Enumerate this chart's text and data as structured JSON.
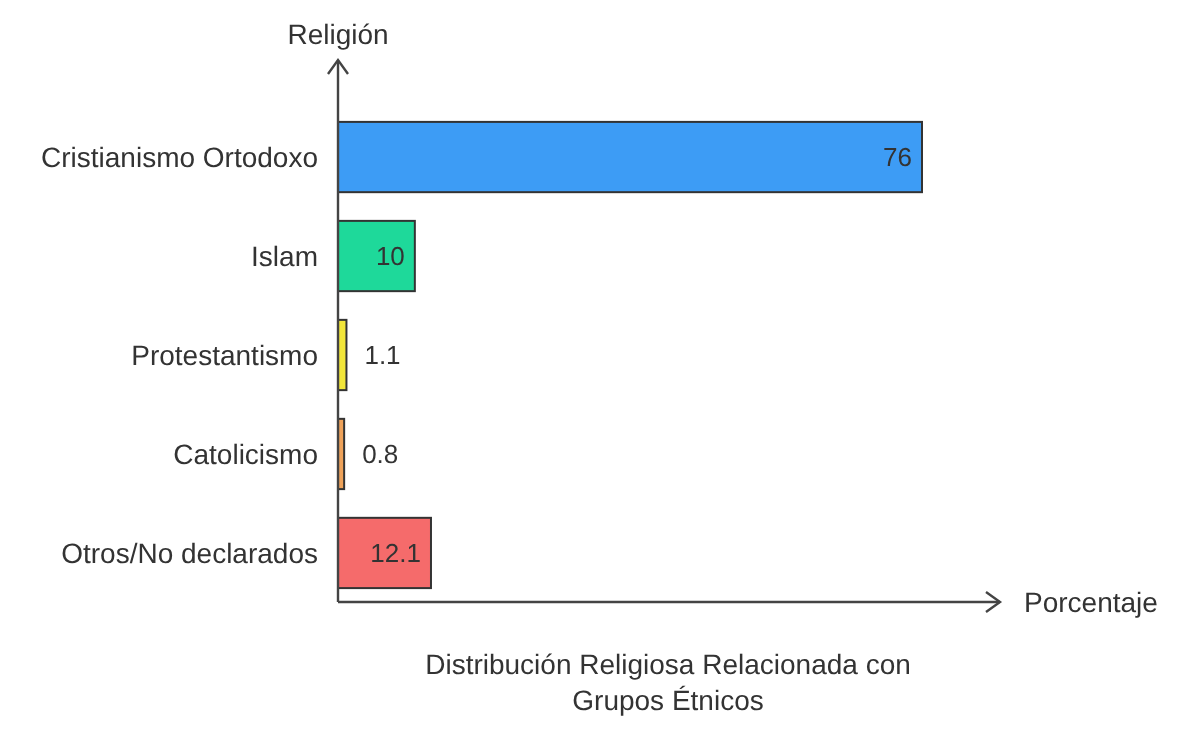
{
  "chart_data": {
    "type": "bar",
    "orientation": "horizontal",
    "title": "Distribución Religiosa Relacionada con Grupos Étnicos",
    "xlabel": "Porcentaje",
    "ylabel": "Religión",
    "categories": [
      "Cristianismo Ortodoxo",
      "Islam",
      "Protestantismo",
      "Catolicismo",
      "Otros/No declarados"
    ],
    "values": [
      76,
      10,
      1.1,
      0.8,
      12.1
    ],
    "colors": [
      "#3d9cf5",
      "#1ed99a",
      "#f2e63a",
      "#eea25a",
      "#f56b6b"
    ],
    "data_labels": true
  }
}
